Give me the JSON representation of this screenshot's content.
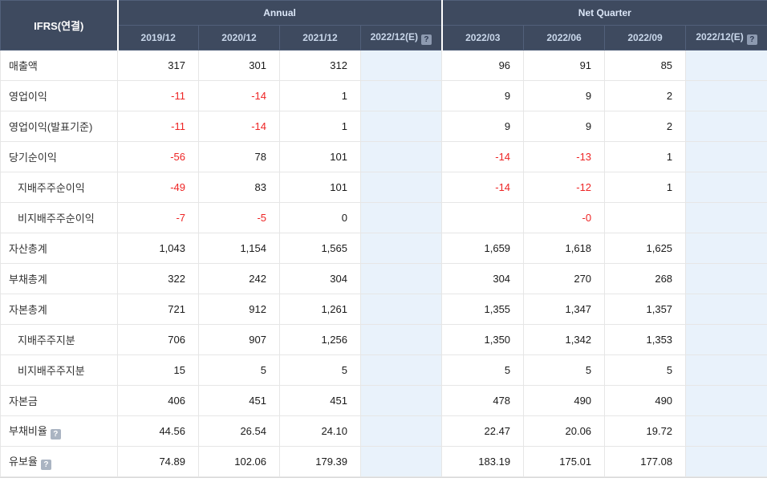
{
  "table": {
    "corner_label": "IFRS(연결)",
    "groups": [
      {
        "label": "Annual",
        "span": 4
      },
      {
        "label": "Net Quarter",
        "span": 4
      }
    ],
    "columns": [
      {
        "label": "2019/12",
        "help": false,
        "estimate": false
      },
      {
        "label": "2020/12",
        "help": false,
        "estimate": false
      },
      {
        "label": "2021/12",
        "help": false,
        "estimate": false
      },
      {
        "label": "2022/12(E)",
        "help": true,
        "estimate": true
      },
      {
        "label": "2022/03",
        "help": false,
        "estimate": false
      },
      {
        "label": "2022/06",
        "help": false,
        "estimate": false
      },
      {
        "label": "2022/09",
        "help": false,
        "estimate": false
      },
      {
        "label": "2022/12(E)",
        "help": true,
        "estimate": true
      }
    ],
    "rows": [
      {
        "label": "매출액",
        "indent": false,
        "help": false,
        "values": [
          "317",
          "301",
          "312",
          "",
          "96",
          "91",
          "85",
          ""
        ]
      },
      {
        "label": "영업이익",
        "indent": false,
        "help": false,
        "values": [
          "-11",
          "-14",
          "1",
          "",
          "9",
          "9",
          "2",
          ""
        ]
      },
      {
        "label": "영업이익(발표기준)",
        "indent": false,
        "help": false,
        "values": [
          "-11",
          "-14",
          "1",
          "",
          "9",
          "9",
          "2",
          ""
        ]
      },
      {
        "label": "당기순이익",
        "indent": false,
        "help": false,
        "values": [
          "-56",
          "78",
          "101",
          "",
          "-14",
          "-13",
          "1",
          ""
        ]
      },
      {
        "label": "지배주주순이익",
        "indent": true,
        "help": false,
        "values": [
          "-49",
          "83",
          "101",
          "",
          "-14",
          "-12",
          "1",
          ""
        ]
      },
      {
        "label": "비지배주주순이익",
        "indent": true,
        "help": false,
        "values": [
          "-7",
          "-5",
          "0",
          "",
          "",
          "-0",
          "",
          ""
        ]
      },
      {
        "label": "자산총계",
        "indent": false,
        "help": false,
        "values": [
          "1,043",
          "1,154",
          "1,565",
          "",
          "1,659",
          "1,618",
          "1,625",
          ""
        ]
      },
      {
        "label": "부채총계",
        "indent": false,
        "help": false,
        "values": [
          "322",
          "242",
          "304",
          "",
          "304",
          "270",
          "268",
          ""
        ]
      },
      {
        "label": "자본총계",
        "indent": false,
        "help": false,
        "values": [
          "721",
          "912",
          "1,261",
          "",
          "1,355",
          "1,347",
          "1,357",
          ""
        ]
      },
      {
        "label": "지배주주지분",
        "indent": true,
        "help": false,
        "values": [
          "706",
          "907",
          "1,256",
          "",
          "1,350",
          "1,342",
          "1,353",
          ""
        ]
      },
      {
        "label": "비지배주주지분",
        "indent": true,
        "help": false,
        "values": [
          "15",
          "5",
          "5",
          "",
          "5",
          "5",
          "5",
          ""
        ]
      },
      {
        "label": "자본금",
        "indent": false,
        "help": false,
        "values": [
          "406",
          "451",
          "451",
          "",
          "478",
          "490",
          "490",
          ""
        ]
      },
      {
        "label": "부채비율",
        "indent": false,
        "help": true,
        "values": [
          "44.56",
          "26.54",
          "24.10",
          "",
          "22.47",
          "20.06",
          "19.72",
          ""
        ]
      },
      {
        "label": "유보율",
        "indent": false,
        "help": true,
        "values": [
          "74.89",
          "102.06",
          "179.39",
          "",
          "183.19",
          "175.01",
          "177.08",
          ""
        ]
      }
    ],
    "help_icon_glyph": "?",
    "colors": {
      "header_bg": "#3e4a5f",
      "estimate_col_bg": "#e9f2fb",
      "negative": "#ee2424"
    }
  }
}
